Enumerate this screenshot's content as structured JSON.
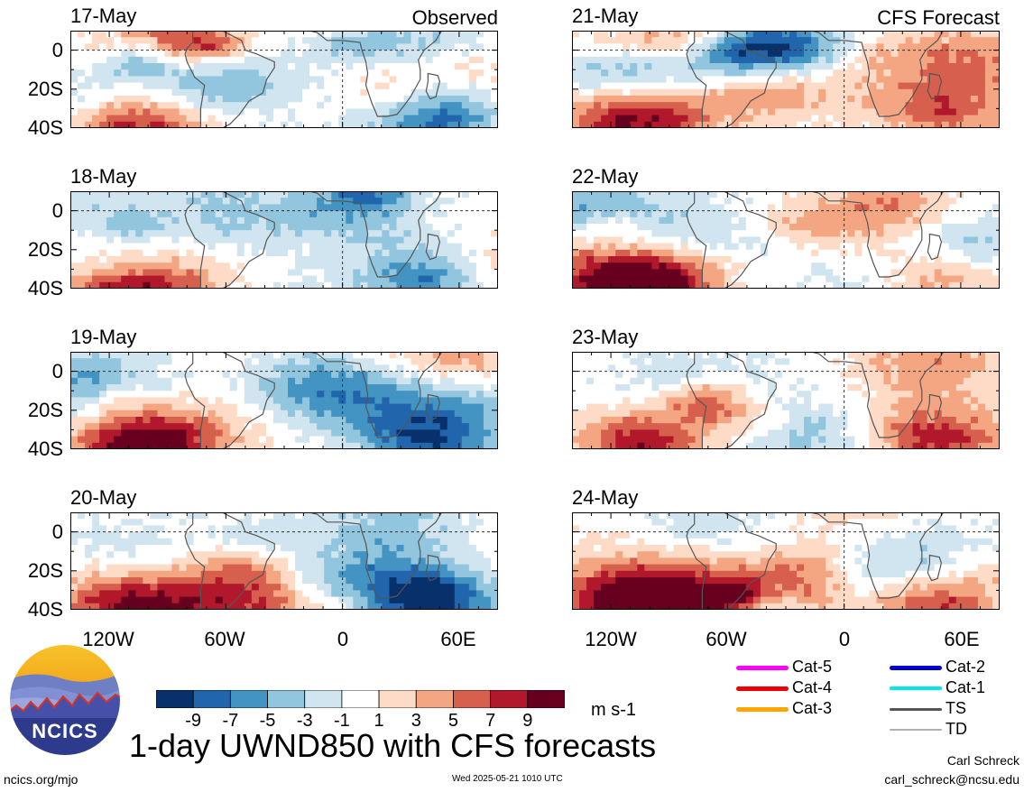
{
  "panels": [
    {
      "date": "17-May",
      "corner": "Observed"
    },
    {
      "date": "21-May",
      "corner": "CFS Forecast"
    },
    {
      "date": "18-May",
      "corner": ""
    },
    {
      "date": "22-May",
      "corner": ""
    },
    {
      "date": "19-May",
      "corner": ""
    },
    {
      "date": "23-May",
      "corner": ""
    },
    {
      "date": "20-May",
      "corner": ""
    },
    {
      "date": "24-May",
      "corner": ""
    }
  ],
  "lat_labels": [
    "0",
    "20S",
    "40S"
  ],
  "lon_labels": [
    "120W",
    "60W",
    "0",
    "60E"
  ],
  "colorbar": {
    "colors": [
      "#08306b",
      "#2166ac",
      "#4393c3",
      "#92c5de",
      "#d1e5f0",
      "#ffffff",
      "#fddbc7",
      "#f4a582",
      "#d6604d",
      "#b2182b",
      "#67001f"
    ],
    "ticks": [
      "-9",
      "-7",
      "-5",
      "-3",
      "-1",
      "1",
      "3",
      "5",
      "7",
      "9"
    ],
    "units": "m s-1"
  },
  "legend": [
    {
      "label": "Cat-5",
      "color": "#ff00ff",
      "width": 5
    },
    {
      "label": "Cat-2",
      "color": "#0000cc",
      "width": 5
    },
    {
      "label": "Cat-4",
      "color": "#ee0000",
      "width": 5
    },
    {
      "label": "Cat-1",
      "color": "#00e5ee",
      "width": 4
    },
    {
      "label": "Cat-3",
      "color": "#ffa500",
      "width": 5
    },
    {
      "label": "TS",
      "color": "#555555",
      "width": 3
    },
    {
      "label": "TD",
      "color": "#b0b0b0",
      "width": 2
    }
  ],
  "logo_text": "NCICS",
  "title": "1-day UWND850 with CFS forecasts",
  "url": "ncics.org/mjo",
  "timestamp": "Wed 2025-05-21 1010 UTC",
  "author": "Carl Schreck",
  "email": "carl_schreck@ncsu.edu"
}
